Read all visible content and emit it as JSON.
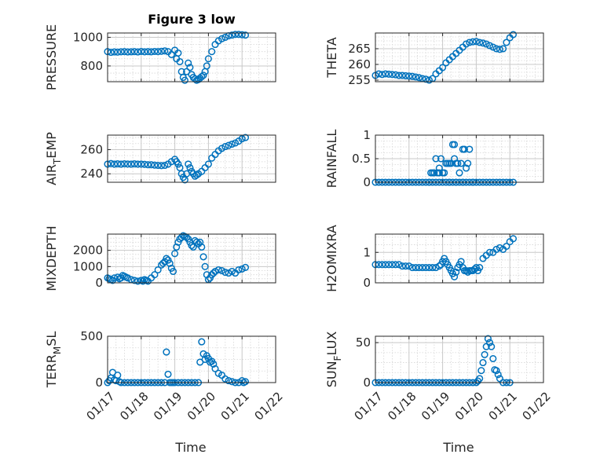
{
  "title": "Figure 3 low",
  "marker_color": "#0072bd",
  "chart_data": [
    {
      "type": "scatter",
      "ylabel": "PRESSURE",
      "xlabel": "",
      "xlim": [
        17,
        22
      ],
      "ylim": [
        690,
        1030
      ],
      "yticks": [
        800,
        1000
      ],
      "ytick_labels": [
        "800",
        "1000"
      ],
      "grid": true,
      "x": [
        17.0,
        17.1,
        17.2,
        17.3,
        17.4,
        17.5,
        17.6,
        17.7,
        17.8,
        17.9,
        18.0,
        18.1,
        18.2,
        18.3,
        18.4,
        18.5,
        18.6,
        18.7,
        18.8,
        18.9,
        19.0,
        19.05,
        19.1,
        19.15,
        19.2,
        19.25,
        19.3,
        19.35,
        19.4,
        19.45,
        19.5,
        19.55,
        19.6,
        19.65,
        19.7,
        19.75,
        19.8,
        19.85,
        19.9,
        19.95,
        20.0,
        20.1,
        20.2,
        20.3,
        20.4,
        20.5,
        20.6,
        20.7,
        20.8,
        20.9,
        21.0,
        21.1
      ],
      "y": [
        900,
        895,
        898,
        897,
        899,
        900,
        898,
        899,
        900,
        898,
        901,
        899,
        900,
        899,
        901,
        900,
        902,
        905,
        900,
        880,
        910,
        850,
        890,
        830,
        760,
        720,
        700,
        760,
        820,
        790,
        740,
        720,
        710,
        700,
        705,
        715,
        725,
        735,
        760,
        800,
        850,
        900,
        950,
        975,
        990,
        1000,
        1010,
        1015,
        1020,
        1020,
        1018,
        1015
      ]
    },
    {
      "type": "scatter",
      "ylabel": "THETA",
      "xlabel": "",
      "xlim": [
        17,
        22
      ],
      "ylim": [
        254.5,
        270
      ],
      "yticks": [
        255,
        260,
        265
      ],
      "ytick_labels": [
        "255",
        "260",
        "265"
      ],
      "grid": true,
      "x": [
        17.0,
        17.1,
        17.2,
        17.3,
        17.4,
        17.5,
        17.6,
        17.7,
        17.8,
        17.9,
        18.0,
        18.1,
        18.2,
        18.3,
        18.4,
        18.5,
        18.6,
        18.7,
        18.8,
        18.9,
        19.0,
        19.1,
        19.2,
        19.3,
        19.4,
        19.5,
        19.6,
        19.7,
        19.8,
        19.9,
        20.0,
        20.1,
        20.2,
        20.3,
        20.4,
        20.5,
        20.6,
        20.7,
        20.8,
        20.9,
        21.0,
        21.1
      ],
      "y": [
        256.5,
        257.0,
        256.8,
        257.0,
        256.9,
        256.8,
        256.7,
        256.5,
        256.5,
        256.4,
        256.3,
        256.2,
        256.0,
        255.8,
        255.5,
        255.3,
        255.0,
        255.5,
        257.0,
        258.0,
        259.0,
        260.5,
        261.5,
        262.5,
        263.5,
        264.5,
        265.5,
        266.5,
        267.0,
        267.2,
        267.3,
        267.0,
        266.8,
        266.5,
        266.0,
        265.5,
        265.0,
        264.8,
        265.0,
        267.0,
        268.5,
        269.5
      ]
    },
    {
      "type": "scatter",
      "ylabel": "AIR_TEMP",
      "ylabel_main": "AIR",
      "ylabel_sub": "T",
      "ylabel_rest": "EMP",
      "xlabel": "",
      "xlim": [
        17,
        22
      ],
      "ylim": [
        233,
        272
      ],
      "yticks": [
        240,
        260
      ],
      "ytick_labels": [
        "240",
        "260"
      ],
      "grid": true,
      "x": [
        17.0,
        17.1,
        17.2,
        17.3,
        17.4,
        17.5,
        17.6,
        17.7,
        17.8,
        17.9,
        18.0,
        18.1,
        18.2,
        18.3,
        18.4,
        18.5,
        18.6,
        18.7,
        18.8,
        18.9,
        19.0,
        19.05,
        19.1,
        19.15,
        19.2,
        19.25,
        19.3,
        19.35,
        19.4,
        19.45,
        19.5,
        19.55,
        19.6,
        19.65,
        19.7,
        19.8,
        19.9,
        20.0,
        20.1,
        20.2,
        20.3,
        20.4,
        20.5,
        20.6,
        20.7,
        20.8,
        20.9,
        21.0,
        21.1
      ],
      "y": [
        248,
        248.5,
        248,
        248.2,
        248,
        248.3,
        248.1,
        248,
        248.2,
        248,
        248,
        247.8,
        247.5,
        247.5,
        247.2,
        247,
        246.8,
        247,
        248,
        250,
        252,
        250,
        248,
        245,
        240,
        237,
        235,
        240,
        248,
        245,
        242,
        240,
        238,
        239,
        240,
        242,
        245,
        248,
        253,
        256,
        259,
        261,
        262.5,
        263.5,
        264.5,
        265.5,
        267,
        269,
        270
      ]
    },
    {
      "type": "scatter",
      "ylabel": "RAINFALL",
      "xlabel": "",
      "xlim": [
        17,
        22
      ],
      "ylim": [
        0,
        1
      ],
      "yticks": [
        0,
        0.5,
        1
      ],
      "ytick_labels": [
        "0",
        "0.5",
        "1"
      ],
      "grid": true,
      "x": [
        17.0,
        17.1,
        17.2,
        17.3,
        17.4,
        17.5,
        17.6,
        17.7,
        17.8,
        17.9,
        18.0,
        18.1,
        18.2,
        18.3,
        18.4,
        18.5,
        18.6,
        18.7,
        18.8,
        18.9,
        19.0,
        19.1,
        19.2,
        19.3,
        19.4,
        19.5,
        19.6,
        19.7,
        19.8,
        19.9,
        20.0,
        20.1,
        20.2,
        20.3,
        20.4,
        20.5,
        20.6,
        20.7,
        20.8,
        20.9,
        21.0,
        21.1,
        18.6,
        18.65,
        18.7,
        18.75,
        18.8,
        18.85,
        18.9,
        18.95,
        19.0,
        19.05,
        19.1,
        19.15,
        19.2,
        19.25,
        19.3,
        19.35,
        19.4,
        19.45,
        19.5,
        19.55,
        19.6,
        19.65,
        19.7,
        19.75,
        19.8,
        19.9,
        18.9,
        19.2,
        19.35,
        19.4,
        19.6
      ],
      "y": [
        0,
        0,
        0,
        0,
        0,
        0,
        0,
        0,
        0,
        0,
        0,
        0,
        0,
        0,
        0,
        0,
        0,
        0,
        0,
        0,
        0,
        0,
        0,
        0,
        0,
        0,
        0,
        0,
        0,
        0,
        0,
        0,
        0,
        0,
        0,
        0,
        0,
        0,
        0,
        0,
        0,
        0,
        0,
        0.2,
        0.2,
        0.2,
        0.5,
        0.2,
        0.2,
        0.5,
        0.2,
        0.2,
        0.4,
        0.4,
        0.4,
        0.4,
        0.8,
        0.8,
        0.4,
        0.4,
        0.2,
        0.4,
        0.7,
        0.7,
        0.3,
        0.4,
        0.7,
        0,
        0.3,
        0,
        0.5,
        0,
        0
      ]
    },
    {
      "type": "scatter",
      "ylabel": "MIXDEPTH",
      "xlabel": "",
      "xlim": [
        17,
        22
      ],
      "ylim": [
        0,
        3000
      ],
      "yticks": [
        0,
        1000,
        2000
      ],
      "ytick_labels": [
        "0",
        "1000",
        "2000"
      ],
      "grid": true,
      "x": [
        17.0,
        17.05,
        17.1,
        17.15,
        17.2,
        17.3,
        17.35,
        17.4,
        17.45,
        17.5,
        17.55,
        17.6,
        17.7,
        17.8,
        17.9,
        18.0,
        18.05,
        18.1,
        18.15,
        18.2,
        18.3,
        18.4,
        18.5,
        18.6,
        18.65,
        18.7,
        18.75,
        18.8,
        18.85,
        18.9,
        18.95,
        19.0,
        19.05,
        19.1,
        19.15,
        19.2,
        19.25,
        19.3,
        19.35,
        19.4,
        19.45,
        19.5,
        19.55,
        19.6,
        19.65,
        19.7,
        19.75,
        19.8,
        19.85,
        19.9,
        19.95,
        20.0,
        20.05,
        20.1,
        20.15,
        20.2,
        20.3,
        20.4,
        20.5,
        20.6,
        20.7,
        20.8,
        20.9,
        21.0,
        21.1
      ],
      "y": [
        300,
        250,
        200,
        150,
        300,
        350,
        250,
        300,
        450,
        400,
        350,
        300,
        200,
        150,
        100,
        150,
        100,
        200,
        150,
        100,
        300,
        500,
        800,
        1100,
        1200,
        1300,
        1500,
        1400,
        1200,
        900,
        700,
        1800,
        2200,
        2500,
        2700,
        2800,
        2900,
        2850,
        2800,
        2700,
        2500,
        2300,
        2200,
        2600,
        2500,
        2400,
        2500,
        2200,
        1600,
        1000,
        500,
        200,
        300,
        500,
        600,
        700,
        800,
        750,
        650,
        600,
        700,
        600,
        800,
        850,
        950
      ]
    },
    {
      "type": "scatter",
      "ylabel": "H2OMIXRA",
      "xlabel": "",
      "xlim": [
        17,
        22
      ],
      "ylim": [
        0,
        1.6
      ],
      "yticks": [
        0,
        1
      ],
      "ytick_labels": [
        "0",
        "1"
      ],
      "grid": true,
      "x": [
        17.0,
        17.1,
        17.2,
        17.3,
        17.4,
        17.5,
        17.6,
        17.7,
        17.8,
        17.9,
        18.0,
        18.1,
        18.2,
        18.3,
        18.4,
        18.5,
        18.6,
        18.7,
        18.8,
        18.9,
        18.95,
        19.0,
        19.05,
        19.1,
        19.15,
        19.2,
        19.25,
        19.3,
        19.35,
        19.4,
        19.45,
        19.5,
        19.55,
        19.6,
        19.65,
        19.7,
        19.75,
        19.8,
        19.85,
        19.9,
        19.95,
        20.0,
        20.05,
        20.1,
        20.2,
        20.3,
        20.4,
        20.5,
        20.6,
        20.7,
        20.8,
        20.9,
        21.0,
        21.1
      ],
      "y": [
        0.6,
        0.6,
        0.6,
        0.6,
        0.6,
        0.6,
        0.6,
        0.6,
        0.55,
        0.55,
        0.55,
        0.5,
        0.5,
        0.5,
        0.5,
        0.5,
        0.5,
        0.5,
        0.5,
        0.55,
        0.6,
        0.7,
        0.8,
        0.7,
        0.6,
        0.5,
        0.4,
        0.3,
        0.2,
        0.35,
        0.5,
        0.6,
        0.7,
        0.5,
        0.4,
        0.4,
        0.35,
        0.4,
        0.4,
        0.4,
        0.45,
        0.5,
        0.4,
        0.5,
        0.8,
        0.9,
        1.0,
        1.0,
        1.1,
        1.15,
        1.1,
        1.2,
        1.35,
        1.45
      ]
    },
    {
      "type": "scatter",
      "ylabel": "TERR_MSL",
      "ylabel_main": "TERR",
      "ylabel_sub": "M",
      "ylabel_rest": "SL",
      "xlabel": "Time",
      "xlim": [
        17,
        22
      ],
      "ylim": [
        0,
        500
      ],
      "yticks": [
        0,
        500
      ],
      "ytick_labels": [
        "0",
        "500"
      ],
      "xticks": [
        17,
        18,
        19,
        20,
        21,
        22
      ],
      "xtick_labels": [
        "01/17",
        "01/18",
        "01/19",
        "01/20",
        "01/21",
        "01/22"
      ],
      "grid": true,
      "x": [
        17.0,
        17.05,
        17.1,
        17.15,
        17.2,
        17.25,
        17.3,
        17.35,
        17.4,
        17.5,
        17.6,
        17.7,
        17.8,
        17.9,
        18.0,
        18.1,
        18.2,
        18.3,
        18.4,
        18.5,
        18.6,
        18.7,
        18.75,
        18.8,
        18.85,
        18.9,
        18.95,
        19.0,
        19.1,
        19.2,
        19.3,
        19.4,
        19.5,
        19.6,
        19.7,
        19.75,
        19.8,
        19.85,
        19.9,
        19.95,
        20.0,
        20.05,
        20.1,
        20.15,
        20.2,
        20.3,
        20.4,
        20.5,
        20.6,
        20.7,
        20.8,
        20.9,
        21.0,
        21.05,
        21.1
      ],
      "y": [
        0,
        20,
        50,
        110,
        30,
        20,
        80,
        10,
        0,
        0,
        0,
        0,
        0,
        0,
        0,
        0,
        0,
        0,
        0,
        0,
        0,
        0,
        330,
        90,
        0,
        0,
        0,
        0,
        0,
        0,
        0,
        0,
        0,
        0,
        0,
        220,
        440,
        310,
        250,
        290,
        260,
        220,
        230,
        200,
        150,
        100,
        80,
        40,
        20,
        10,
        0,
        0,
        20,
        0,
        10
      ]
    },
    {
      "type": "scatter",
      "ylabel": "SUN_FLUX",
      "ylabel_main": "SUN",
      "ylabel_sub": "F",
      "ylabel_rest": "LUX",
      "xlabel": "Time",
      "xlim": [
        17,
        22
      ],
      "ylim": [
        0,
        58
      ],
      "yticks": [
        0,
        50
      ],
      "ytick_labels": [
        "0",
        "50"
      ],
      "xticks": [
        17,
        18,
        19,
        20,
        21,
        22
      ],
      "xtick_labels": [
        "01/17",
        "01/18",
        "01/19",
        "01/20",
        "01/21",
        "01/22"
      ],
      "grid": true,
      "x": [
        17.0,
        17.1,
        17.2,
        17.3,
        17.4,
        17.5,
        17.6,
        17.7,
        17.8,
        17.9,
        18.0,
        18.1,
        18.2,
        18.3,
        18.4,
        18.5,
        18.6,
        18.7,
        18.8,
        18.9,
        19.0,
        19.1,
        19.2,
        19.3,
        19.4,
        19.5,
        19.6,
        19.7,
        19.8,
        19.9,
        20.0,
        20.05,
        20.1,
        20.15,
        20.2,
        20.25,
        20.3,
        20.35,
        20.4,
        20.45,
        20.5,
        20.55,
        20.6,
        20.65,
        20.7,
        20.8,
        20.9,
        21.0
      ],
      "y": [
        0,
        0,
        0,
        0,
        0,
        0,
        0,
        0,
        0,
        0,
        0,
        0,
        0,
        0,
        0,
        0,
        0,
        0,
        0,
        0,
        0,
        0,
        0,
        0,
        0,
        0,
        0,
        0,
        0,
        0,
        0,
        2,
        5,
        15,
        25,
        35,
        45,
        55,
        50,
        45,
        30,
        16,
        15,
        10,
        5,
        0,
        0,
        0
      ]
    }
  ]
}
